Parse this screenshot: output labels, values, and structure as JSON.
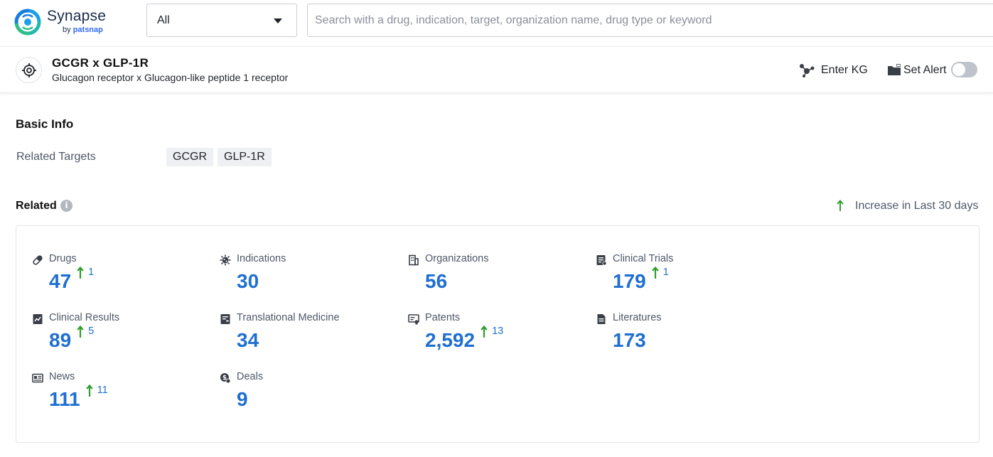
{
  "brand": {
    "name": "Synapse",
    "sub_prefix": "by",
    "sub_brand": "patsnap"
  },
  "search": {
    "scope_value": "All",
    "placeholder": "Search with a drug, indication, target, organization name, drug type or keyword"
  },
  "entity": {
    "title": "GCGR x GLP-1R",
    "subtitle": "Glucagon receptor x Glucagon-like peptide 1 receptor",
    "enter_kg_label": "Enter KG",
    "set_alert_label": "Set Alert",
    "alert_enabled": false
  },
  "basic_info": {
    "title": "Basic Info",
    "related_targets_label": "Related Targets",
    "related_targets": [
      "GCGR",
      "GLP-1R"
    ]
  },
  "related": {
    "title": "Related",
    "info_icon": "i",
    "legend_text": "Increase in Last 30 days",
    "colors": {
      "value": "#1f6fd1",
      "increase_arrow": "#2e9e2e"
    },
    "stats": [
      {
        "label": "Drugs",
        "value": "47",
        "increase": "1",
        "icon": "pill-icon"
      },
      {
        "label": "Indications",
        "value": "30",
        "increase": null,
        "icon": "virus-icon"
      },
      {
        "label": "Organizations",
        "value": "56",
        "increase": null,
        "icon": "building-icon"
      },
      {
        "label": "Clinical Trials",
        "value": "179",
        "increase": "1",
        "icon": "clipboard-icon"
      },
      {
        "label": "Clinical Results",
        "value": "89",
        "increase": "5",
        "icon": "results-chart-icon"
      },
      {
        "label": "Translational Medicine",
        "value": "34",
        "increase": null,
        "icon": "translational-icon"
      },
      {
        "label": "Patents",
        "value": "2,592",
        "increase": "13",
        "icon": "patent-icon"
      },
      {
        "label": "Literatures",
        "value": "173",
        "increase": null,
        "icon": "document-icon"
      },
      {
        "label": "News",
        "value": "111",
        "increase": "11",
        "icon": "newspaper-icon"
      },
      {
        "label": "Deals",
        "value": "9",
        "increase": null,
        "icon": "deal-icon"
      }
    ]
  }
}
